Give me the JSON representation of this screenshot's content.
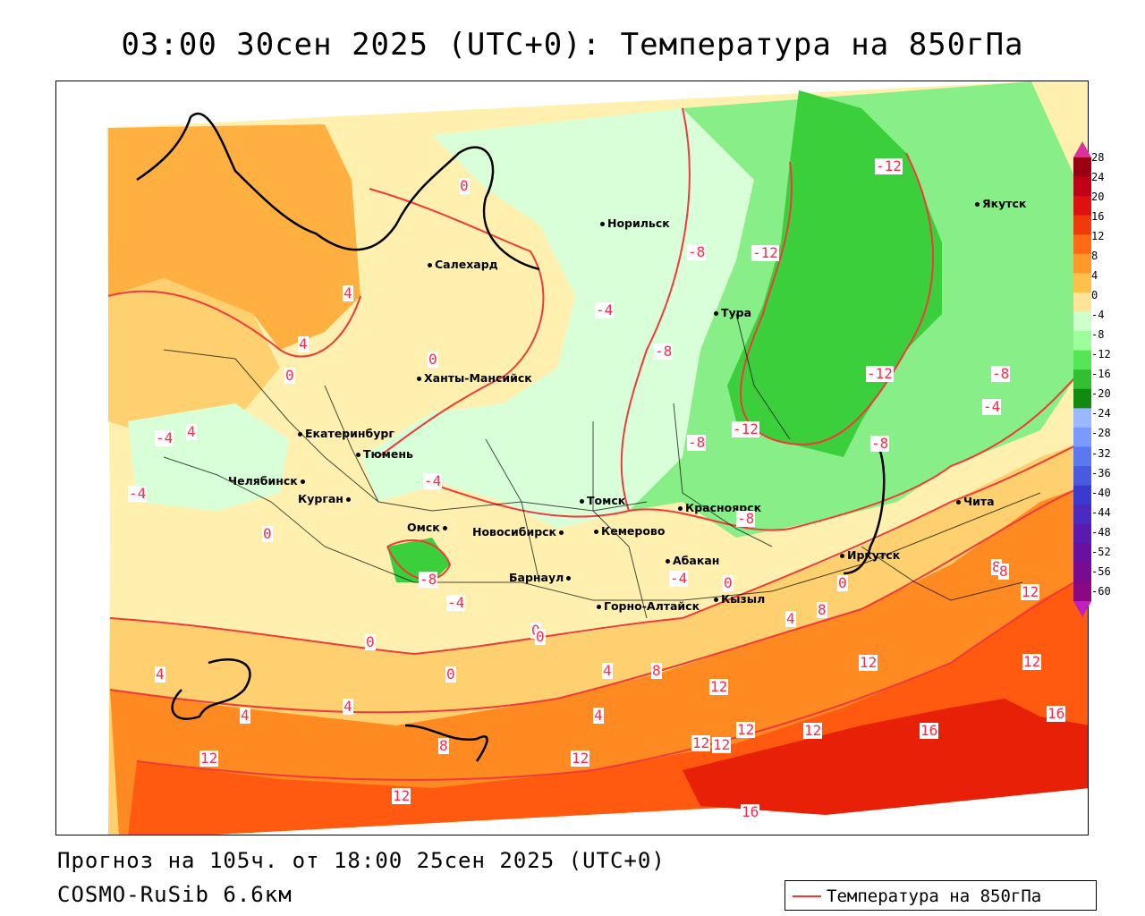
{
  "title": "03:00 30сен 2025 (UTC+0): Температура на 850гПа",
  "footer": {
    "forecast": "Прогноз на 105ч. от 18:00 25сен 2025 (UTC+0)",
    "model": "COSMO-RuSib 6.6км"
  },
  "legend": {
    "label": "Температура на 850гПа",
    "line_color": "#ff3030"
  },
  "cities": [
    {
      "name": "Норильск",
      "id": "norilsk"
    },
    {
      "name": "Якутск",
      "id": "yakutsk"
    },
    {
      "name": "Салехард",
      "id": "salekhard"
    },
    {
      "name": "Тура",
      "id": "tura"
    },
    {
      "name": "Ханты-Мансийск",
      "id": "khanty-mansiysk"
    },
    {
      "name": "Екатеринбург",
      "id": "ekaterinburg"
    },
    {
      "name": "Тюмень",
      "id": "tyumen"
    },
    {
      "name": "Челябинск",
      "id": "chelyabinsk"
    },
    {
      "name": "Курган",
      "id": "kurgan"
    },
    {
      "name": "Омск",
      "id": "omsk"
    },
    {
      "name": "Новосибирск",
      "id": "novosibirsk"
    },
    {
      "name": "Томск",
      "id": "tomsk"
    },
    {
      "name": "Кемерово",
      "id": "kemerovo"
    },
    {
      "name": "Барнаул",
      "id": "barnaul"
    },
    {
      "name": "Красноярск",
      "id": "krasnoyarsk"
    },
    {
      "name": "Абакан",
      "id": "abakan"
    },
    {
      "name": "Горно-Алтайск",
      "id": "gorno-altaysk"
    },
    {
      "name": "Кызыл",
      "id": "kyzyl"
    },
    {
      "name": "Иркутск",
      "id": "irkutsk"
    },
    {
      "name": "Чита",
      "id": "chita"
    }
  ],
  "isotherm_labels": [
    "0",
    "4",
    "4",
    "0",
    "4",
    "0",
    "-4",
    "-4",
    "0",
    "-4",
    "-8",
    "-8",
    "-8",
    "-12",
    "-12",
    "-12",
    "-12",
    "-8",
    "-8",
    "-4",
    "-8",
    "-4",
    "-8",
    "0",
    "-4",
    "0",
    "0",
    "4",
    "4",
    "0",
    "0",
    "0",
    "4",
    "8",
    "12",
    "8",
    "4",
    "8",
    "12",
    "12",
    "12",
    "12",
    "16",
    "16",
    "4",
    "8",
    "12",
    "12",
    "16",
    "12",
    "12",
    "12",
    "-4",
    "8",
    "12",
    "4"
  ],
  "color_scale": {
    "ticks": [
      "28",
      "24",
      "20",
      "16",
      "12",
      "8",
      "4",
      "0",
      "-4",
      "-8",
      "-12",
      "-16",
      "-20",
      "-24",
      "-28",
      "-32",
      "-36",
      "-40",
      "-44",
      "-48",
      "-52",
      "-56",
      "-60"
    ],
    "colors": [
      "#9a0012",
      "#c00014",
      "#e01010",
      "#f03a0a",
      "#ff6a12",
      "#ff9a2a",
      "#ffc04a",
      "#ffe49a",
      "#cfffcf",
      "#9cff9c",
      "#55e655",
      "#30c030",
      "#118a11",
      "#9ab8ff",
      "#7a9aff",
      "#5a78ef",
      "#4a5ae0",
      "#3a3ad0",
      "#4a2ac0",
      "#5a1ab0",
      "#6a10a0",
      "#7a0a90",
      "#8a0880"
    ],
    "top_color": "#e030a0",
    "bottom_color": "#c020c0"
  },
  "map_colors": {
    "warm_light": "#fff0b0",
    "warm_mid": "#ffd070",
    "warm_orange": "#ffb040",
    "hot_orange": "#ff8a22",
    "hot_red": "#ff5a10",
    "very_hot": "#e82008",
    "cool_light": "#d8ffd8",
    "cool_mid": "#88ee88",
    "cold_green": "#3ccf3c",
    "isotherm": "#f03a3a"
  }
}
